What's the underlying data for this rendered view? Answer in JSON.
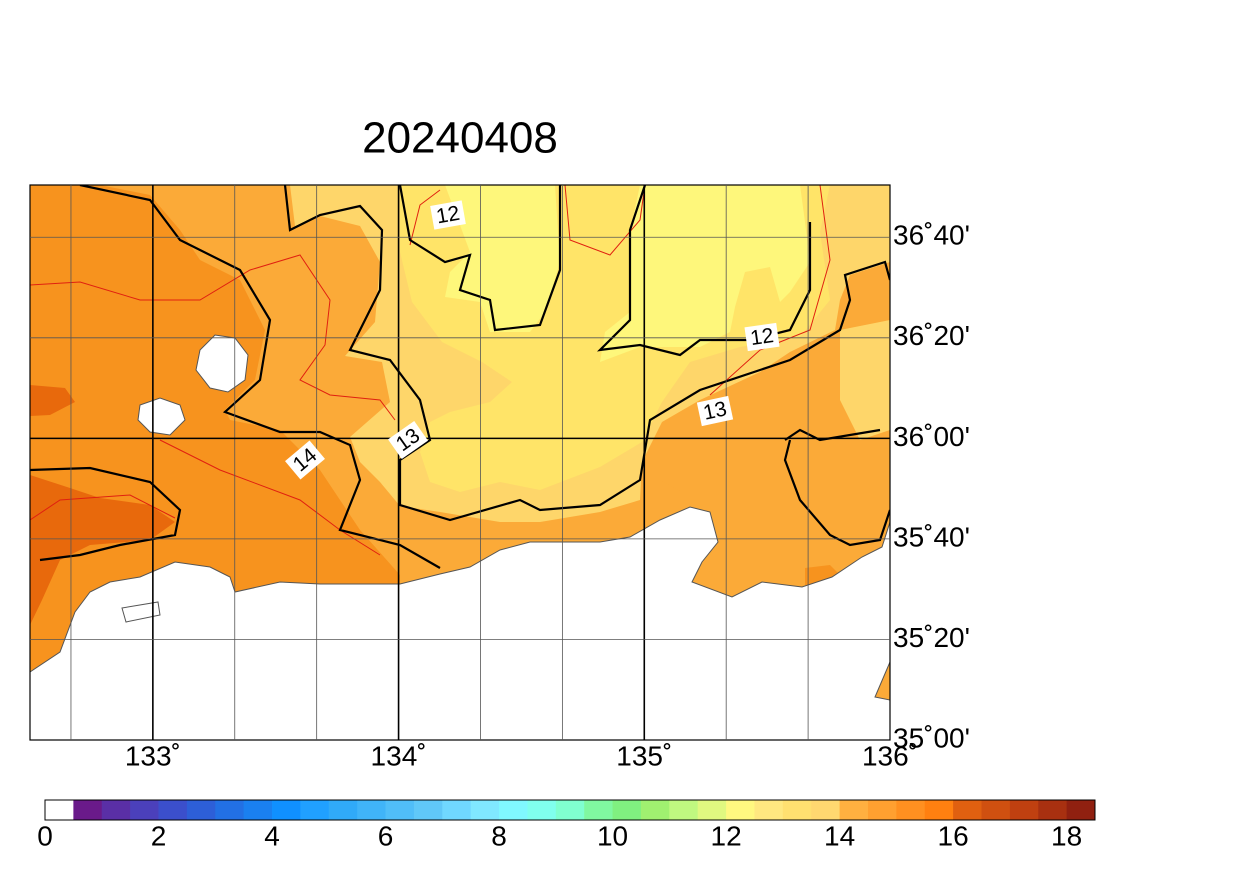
{
  "map": {
    "title": "20240408",
    "lonlim": [
      132.5,
      136
    ],
    "latlim": [
      35,
      36.84
    ],
    "lon_ticks": [
      {
        "value": 133,
        "label": "133˚"
      },
      {
        "value": 134,
        "label": "134˚"
      },
      {
        "value": 135,
        "label": "135˚"
      },
      {
        "value": 136,
        "label": "136˚"
      }
    ],
    "lat_ticks": [
      {
        "value": 35,
        "label": "35˚00'"
      },
      {
        "value": 35.3333,
        "label": "35˚20'"
      },
      {
        "value": 35.6667,
        "label": "35˚40'"
      },
      {
        "value": 36,
        "label": "36˚00'"
      },
      {
        "value": 36.3333,
        "label": "36˚20'"
      },
      {
        "value": 36.6667,
        "label": "36˚40'"
      }
    ],
    "lon_grid": [
      132.6667,
      133.3333,
      133.6667,
      134.3333,
      134.6667,
      135.3333,
      135.6667
    ],
    "contour_labels": [
      12,
      12,
      13,
      13,
      14
    ],
    "colorbar": {
      "range": [
        0,
        18.5
      ],
      "ticks": [
        0,
        2,
        4,
        6,
        8,
        10,
        12,
        14,
        16,
        18
      ],
      "colors": [
        "#ffffff",
        "#6a1a8a",
        "#5a2fa6",
        "#4b40bb",
        "#3b4fcc",
        "#2d5fd8",
        "#2270e4",
        "#1a80f0",
        "#1090ff",
        "#20a0ff",
        "#30aaf8",
        "#40b4f8",
        "#50bef8",
        "#60c8f8",
        "#70d8ff",
        "#80e8ff",
        "#80f8ff",
        "#80ffee",
        "#80ffd0",
        "#80f8a0",
        "#80f080",
        "#a0f070",
        "#c0f880",
        "#e0f880",
        "#fff880",
        "#ffe880",
        "#ffe070",
        "#ffd870",
        "#ffb040",
        "#ffa030",
        "#ff9020",
        "#ff8010",
        "#e06010",
        "#d05010",
        "#c04010",
        "#a83010",
        "#902010"
      ]
    }
  }
}
